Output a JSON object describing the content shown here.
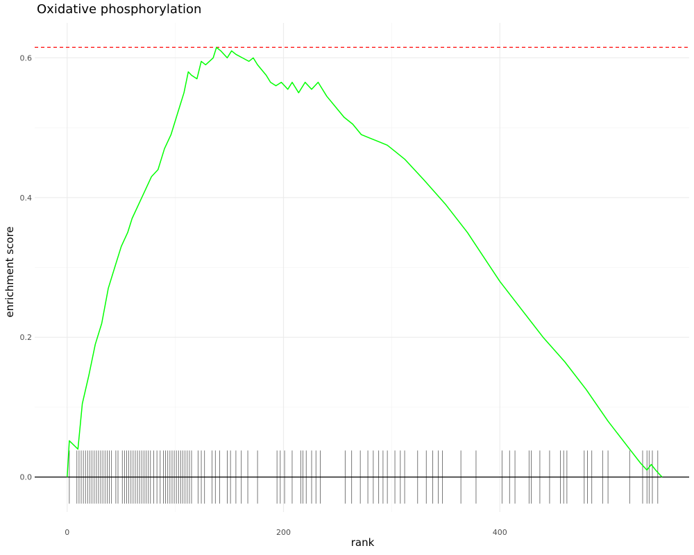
{
  "chart_data": {
    "type": "line",
    "title": "Oxidative phosphorylation",
    "xlabel": "rank",
    "ylabel": "enrichment score",
    "xlim": [
      -30,
      575
    ],
    "ylim": [
      -0.05,
      0.65
    ],
    "x_ticks": [
      0,
      200,
      400
    ],
    "y_ticks": [
      0.0,
      0.2,
      0.4,
      0.6
    ],
    "y_tick_labels": [
      "0.0",
      "0.2",
      "0.4",
      "0.6"
    ],
    "grid": true,
    "max_es_line": {
      "value": 0.615,
      "color": "#ff0000",
      "style": "dashed"
    },
    "baseline": {
      "value": 0.0,
      "color": "#000000"
    },
    "series": [
      {
        "color": "#00ff00",
        "x": [
          0,
          2,
          10,
          14,
          20,
          26,
          32,
          38,
          44,
          50,
          56,
          60,
          66,
          72,
          78,
          84,
          90,
          96,
          102,
          108,
          112,
          115,
          120,
          124,
          128,
          135,
          138,
          142,
          148,
          152,
          156,
          162,
          168,
          172,
          176,
          184,
          188,
          193,
          198,
          204,
          208,
          214,
          220,
          226,
          232,
          240,
          248,
          256,
          264,
          272,
          280,
          288,
          296,
          304,
          312,
          330,
          350,
          370,
          400,
          420,
          440,
          460,
          480,
          500,
          520,
          530,
          536,
          540,
          544,
          550
        ],
        "y": [
          0.0,
          0.052,
          0.04,
          0.105,
          0.145,
          0.19,
          0.22,
          0.27,
          0.3,
          0.33,
          0.35,
          0.37,
          0.39,
          0.41,
          0.43,
          0.44,
          0.47,
          0.49,
          0.52,
          0.55,
          0.58,
          0.575,
          0.57,
          0.595,
          0.59,
          0.6,
          0.615,
          0.61,
          0.6,
          0.61,
          0.605,
          0.6,
          0.595,
          0.6,
          0.59,
          0.575,
          0.565,
          0.56,
          0.565,
          0.555,
          0.565,
          0.55,
          0.565,
          0.555,
          0.565,
          0.545,
          0.53,
          0.515,
          0.505,
          0.49,
          0.485,
          0.48,
          0.475,
          0.465,
          0.455,
          0.425,
          0.39,
          0.35,
          0.28,
          0.24,
          0.2,
          0.165,
          0.125,
          0.08,
          0.04,
          0.02,
          0.01,
          0.018,
          0.01,
          0.0
        ]
      }
    ],
    "rug": {
      "color": "#555555",
      "y_range": [
        -0.038,
        0.038
      ],
      "x": [
        2,
        9,
        11,
        13,
        15,
        17,
        19,
        21,
        23,
        25,
        27,
        29,
        31,
        33,
        35,
        37,
        39,
        41,
        45,
        47,
        51,
        53,
        55,
        57,
        59,
        61,
        63,
        65,
        67,
        69,
        71,
        73,
        75,
        77,
        80,
        83,
        86,
        89,
        91,
        93,
        95,
        97,
        99,
        101,
        103,
        105,
        107,
        109,
        111,
        113,
        115,
        121,
        124,
        127,
        134,
        137,
        141,
        148,
        151,
        156,
        161,
        167,
        176,
        194,
        197,
        201,
        208,
        216,
        218,
        221,
        226,
        230,
        234,
        257,
        263,
        271,
        278,
        283,
        288,
        292,
        296,
        303,
        308,
        312,
        324,
        332,
        338,
        343,
        347,
        364,
        378,
        402,
        409,
        414,
        427,
        429,
        437,
        446,
        456,
        459,
        462,
        478,
        481,
        485,
        495,
        500,
        520,
        532,
        536,
        538,
        541,
        546
      ]
    }
  }
}
